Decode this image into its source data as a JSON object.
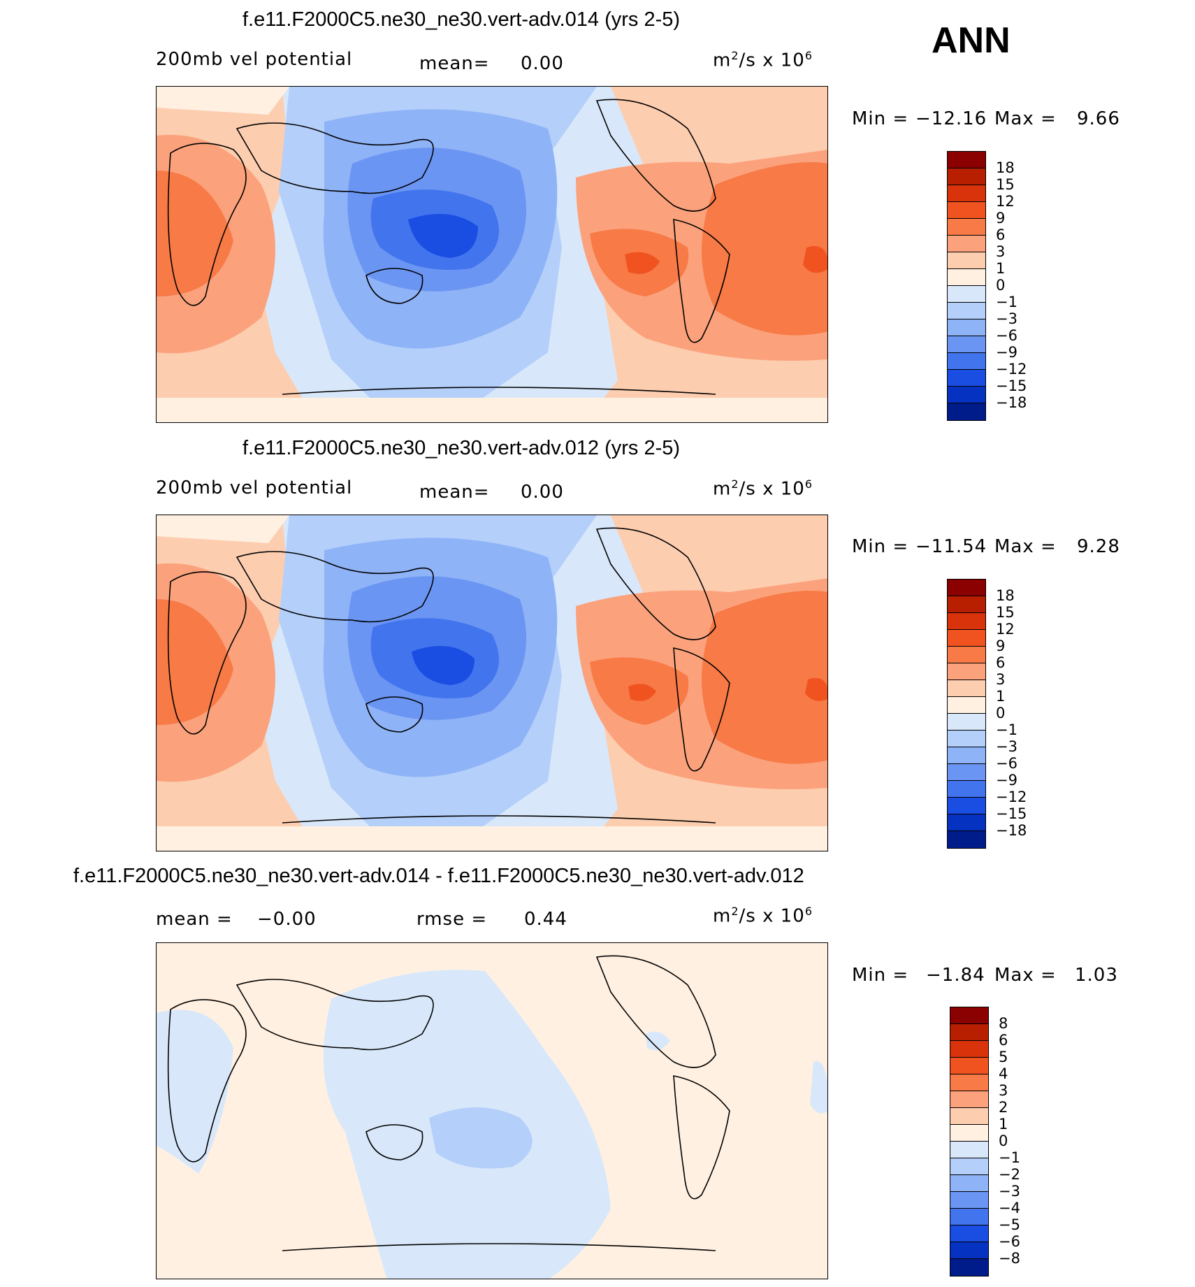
{
  "season": "ANN",
  "panels": [
    {
      "title": "f.e11.F2000C5.ne30_ne30.vert-adv.014 (yrs 2-5)",
      "left_label": "200mb vel potential",
      "mid_label": "mean=",
      "mid_value": "0.00",
      "units_base": "m",
      "units_exp": "2",
      "units_mid": "/s x 10",
      "units_pow": "6",
      "min_label": "Min =",
      "min_value": "−12.16",
      "max_label": "Max =",
      "max_value": "9.66",
      "colorbar": {
        "labels": [
          "18",
          "15",
          "12",
          "9",
          "6",
          "3",
          "1",
          "0",
          "−1",
          "−3",
          "−6",
          "−9",
          "−12",
          "−15",
          "−18"
        ],
        "colors": [
          "#8b0000",
          "#b81f00",
          "#d9330b",
          "#f0531f",
          "#f77a47",
          "#fba27c",
          "#fdcdb0",
          "#fff0e1",
          "#d8e8fa",
          "#b4cffa",
          "#8fb3f7",
          "#6b95f2",
          "#4274ee",
          "#1a4ee2",
          "#0632c2",
          "#001b8a"
        ]
      }
    },
    {
      "title": "f.e11.F2000C5.ne30_ne30.vert-adv.012 (yrs 2-5)",
      "left_label": "200mb vel potential",
      "mid_label": "mean=",
      "mid_value": "0.00",
      "units_base": "m",
      "units_exp": "2",
      "units_mid": "/s x 10",
      "units_pow": "6",
      "min_label": "Min =",
      "min_value": "−11.54",
      "max_label": "Max =",
      "max_value": "9.28",
      "colorbar": {
        "labels": [
          "18",
          "15",
          "12",
          "9",
          "6",
          "3",
          "1",
          "0",
          "−1",
          "−3",
          "−6",
          "−9",
          "−12",
          "−15",
          "−18"
        ],
        "colors": [
          "#8b0000",
          "#b81f00",
          "#d9330b",
          "#f0531f",
          "#f77a47",
          "#fba27c",
          "#fdcdb0",
          "#fff0e1",
          "#d8e8fa",
          "#b4cffa",
          "#8fb3f7",
          "#6b95f2",
          "#4274ee",
          "#1a4ee2",
          "#0632c2",
          "#001b8a"
        ]
      }
    },
    {
      "title": "f.e11.F2000C5.ne30_ne30.vert-adv.014 - f.e11.F2000C5.ne30_ne30.vert-adv.012",
      "left_label": "mean =",
      "left_value": "−0.00",
      "mid_label": "rmse =",
      "mid_value": "0.44",
      "units_base": "m",
      "units_exp": "2",
      "units_mid": "/s x 10",
      "units_pow": "6",
      "min_label": "Min =",
      "min_value": "−1.84",
      "max_label": "Max =",
      "max_value": "1.03",
      "colorbar": {
        "labels": [
          "8",
          "6",
          "5",
          "4",
          "3",
          "2",
          "1",
          "0",
          "−1",
          "−2",
          "−3",
          "−4",
          "−5",
          "−6",
          "−8"
        ],
        "colors": [
          "#8b0000",
          "#b81f00",
          "#d9330b",
          "#f0531f",
          "#f77a47",
          "#fba27c",
          "#fdcdb0",
          "#fff0e1",
          "#d8e8fa",
          "#b4cffa",
          "#8fb3f7",
          "#6b95f2",
          "#4274ee",
          "#1a4ee2",
          "#0632c2",
          "#001b8a"
        ]
      }
    }
  ]
}
